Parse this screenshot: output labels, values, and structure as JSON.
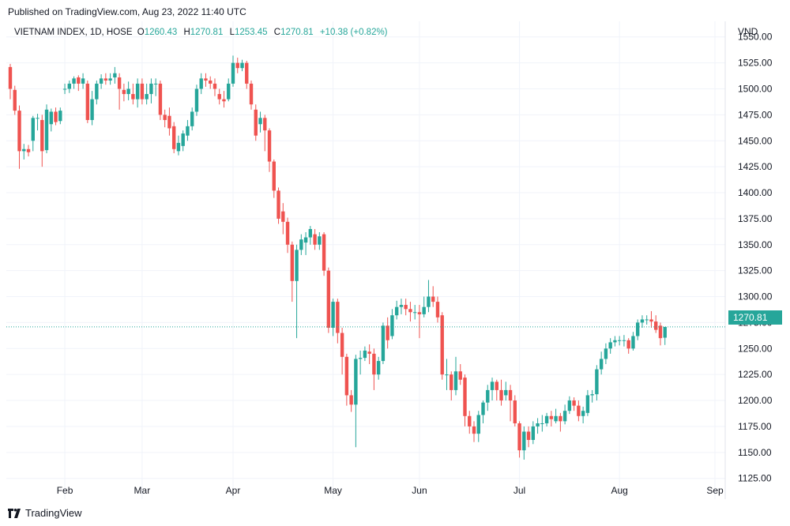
{
  "header": {
    "published": "Published on TradingView.com, Aug 23, 2022 11:40 UTC"
  },
  "legend": {
    "symbol": "VIETNAM INDEX, 1D, HOSE",
    "open_key": "O",
    "open": "1260.43",
    "high_key": "H",
    "high": "1270.81",
    "low_key": "L",
    "low": "1253.45",
    "close_key": "C",
    "close": "1270.81",
    "change": "+10.38 (+0.82%)"
  },
  "axis": {
    "unit": "VND",
    "last_price_label": "1270.81"
  },
  "footer": {
    "brand": "TradingView",
    "logo_icon": "tradingview-logo-icon"
  },
  "colors": {
    "up": "#26a69a",
    "down": "#ef5350",
    "grid": "#f0f3fa",
    "last_price_line": "#26a69a"
  },
  "chart_data": {
    "type": "candlestick",
    "title": "VIETNAM INDEX, 1D, HOSE",
    "ylim": [
      1105,
      1565
    ],
    "y_ticks": [
      1125,
      1150,
      1175,
      1200,
      1225,
      1250,
      1275,
      1300,
      1325,
      1350,
      1375,
      1400,
      1425,
      1450,
      1475,
      1500,
      1525,
      1550
    ],
    "y_tick_labels": [
      "1125.00",
      "1150.00",
      "1175.00",
      "1200.00",
      "1225.00",
      "1250.00",
      "1275.00",
      "1300.00",
      "1325.00",
      "1350.00",
      "1375.00",
      "1400.00",
      "1425.00",
      "1450.00",
      "1475.00",
      "1500.00",
      "1525.00",
      "1550.00"
    ],
    "x_tick_labels": [
      "Feb",
      "Mar",
      "Apr",
      "May",
      "Jun",
      "Jul",
      "Aug",
      "Sep"
    ],
    "x_tick_bar_index": [
      12,
      29,
      49,
      71,
      90,
      112,
      134,
      155
    ],
    "grid": true,
    "last_close": 1270.81,
    "candles": [
      [
        1521,
        1500,
        1524,
        1490
      ],
      [
        1499,
        1479,
        1503,
        1475
      ],
      [
        1479,
        1440,
        1484,
        1423
      ],
      [
        1440,
        1442,
        1447,
        1432
      ],
      [
        1442,
        1439,
        1446,
        1435
      ],
      [
        1450,
        1472,
        1474,
        1440
      ],
      [
        1472,
        1472,
        1476,
        1460
      ],
      [
        1470,
        1440,
        1475,
        1425
      ],
      [
        1441,
        1480,
        1485,
        1438
      ],
      [
        1466,
        1478,
        1481,
        1459
      ],
      [
        1478,
        1468,
        1482,
        1465
      ],
      [
        1469,
        1479,
        1482,
        1466
      ],
      [
        1500,
        1500,
        1505,
        1495
      ],
      [
        1500,
        1505,
        1508,
        1496
      ],
      [
        1505,
        1510,
        1512,
        1500
      ],
      [
        1511,
        1505,
        1513,
        1498
      ],
      [
        1505,
        1510,
        1515,
        1500
      ],
      [
        1505,
        1470,
        1508,
        1467
      ],
      [
        1470,
        1490,
        1498,
        1465
      ],
      [
        1490,
        1505,
        1508,
        1485
      ],
      [
        1505,
        1510,
        1514,
        1500
      ],
      [
        1510,
        1508,
        1515,
        1504
      ],
      [
        1508,
        1510,
        1515,
        1504
      ],
      [
        1511,
        1515,
        1521,
        1505
      ],
      [
        1511,
        1500,
        1515,
        1480
      ],
      [
        1499,
        1495,
        1505,
        1488
      ],
      [
        1495,
        1500,
        1507,
        1489
      ],
      [
        1495,
        1490,
        1505,
        1485
      ],
      [
        1490,
        1505,
        1510,
        1482
      ],
      [
        1505,
        1490,
        1510,
        1485
      ],
      [
        1490,
        1495,
        1505,
        1485
      ],
      [
        1495,
        1505,
        1510,
        1486
      ],
      [
        1505,
        1505,
        1510,
        1493
      ],
      [
        1505,
        1475,
        1508,
        1470
      ],
      [
        1475,
        1470,
        1480,
        1463
      ],
      [
        1474,
        1462,
        1482,
        1455
      ],
      [
        1464,
        1442,
        1468,
        1438
      ],
      [
        1440,
        1448,
        1455,
        1436
      ],
      [
        1445,
        1457,
        1460,
        1440
      ],
      [
        1455,
        1464,
        1470,
        1450
      ],
      [
        1464,
        1478,
        1482,
        1460
      ],
      [
        1478,
        1500,
        1504,
        1474
      ],
      [
        1500,
        1510,
        1515,
        1495
      ],
      [
        1510,
        1508,
        1515,
        1502
      ],
      [
        1508,
        1505,
        1512,
        1500
      ],
      [
        1505,
        1500,
        1510,
        1493
      ],
      [
        1495,
        1490,
        1500,
        1485
      ],
      [
        1490,
        1488,
        1498,
        1482
      ],
      [
        1490,
        1505,
        1510,
        1488
      ],
      [
        1505,
        1525,
        1532,
        1502
      ],
      [
        1525,
        1520,
        1530,
        1515
      ],
      [
        1520,
        1525,
        1528,
        1517
      ],
      [
        1525,
        1505,
        1527,
        1500
      ],
      [
        1505,
        1485,
        1508,
        1480
      ],
      [
        1480,
        1455,
        1485,
        1450
      ],
      [
        1466,
        1472,
        1478,
        1458
      ],
      [
        1472,
        1460,
        1475,
        1440
      ],
      [
        1460,
        1430,
        1462,
        1420
      ],
      [
        1430,
        1402,
        1432,
        1395
      ],
      [
        1402,
        1375,
        1405,
        1370
      ],
      [
        1382,
        1372,
        1390,
        1360
      ],
      [
        1372,
        1350,
        1376,
        1342
      ],
      [
        1350,
        1315,
        1353,
        1295
      ],
      [
        1315,
        1345,
        1350,
        1260
      ],
      [
        1345,
        1355,
        1360,
        1340
      ],
      [
        1352,
        1357,
        1362,
        1340
      ],
      [
        1357,
        1365,
        1368,
        1350
      ],
      [
        1360,
        1350,
        1365,
        1345
      ],
      [
        1350,
        1358,
        1362,
        1345
      ],
      [
        1360,
        1325,
        1362,
        1320
      ],
      [
        1325,
        1270,
        1328,
        1265
      ],
      [
        1270,
        1295,
        1298,
        1262
      ],
      [
        1295,
        1265,
        1298,
        1255
      ],
      [
        1265,
        1242,
        1270,
        1225
      ],
      [
        1242,
        1205,
        1245,
        1195
      ],
      [
        1205,
        1196,
        1210,
        1189
      ],
      [
        1196,
        1240,
        1244,
        1155
      ],
      [
        1240,
        1241,
        1248,
        1225
      ],
      [
        1241,
        1248,
        1252,
        1238
      ],
      [
        1247,
        1245,
        1254,
        1235
      ],
      [
        1245,
        1225,
        1250,
        1210
      ],
      [
        1225,
        1238,
        1242,
        1220
      ],
      [
        1238,
        1272,
        1275,
        1235
      ],
      [
        1272,
        1258,
        1280,
        1250
      ],
      [
        1262,
        1282,
        1288,
        1259
      ],
      [
        1282,
        1290,
        1296,
        1278
      ],
      [
        1290,
        1292,
        1298,
        1283
      ],
      [
        1292,
        1288,
        1298,
        1282
      ],
      [
        1288,
        1285,
        1295,
        1276
      ],
      [
        1285,
        1285,
        1292,
        1278
      ],
      [
        1285,
        1283,
        1292,
        1260
      ],
      [
        1283,
        1290,
        1300,
        1280
      ],
      [
        1290,
        1300,
        1316,
        1285
      ],
      [
        1300,
        1295,
        1310,
        1290
      ],
      [
        1295,
        1280,
        1300,
        1275
      ],
      [
        1282,
        1225,
        1285,
        1220
      ],
      [
        1225,
        1225,
        1240,
        1210
      ],
      [
        1225,
        1210,
        1228,
        1200
      ],
      [
        1210,
        1228,
        1242,
        1205
      ],
      [
        1228,
        1220,
        1235,
        1215
      ],
      [
        1222,
        1185,
        1225,
        1175
      ],
      [
        1185,
        1175,
        1190,
        1168
      ],
      [
        1175,
        1168,
        1180,
        1160
      ],
      [
        1168,
        1186,
        1190,
        1160
      ],
      [
        1186,
        1198,
        1200,
        1178
      ],
      [
        1198,
        1210,
        1215,
        1190
      ],
      [
        1210,
        1218,
        1222,
        1200
      ],
      [
        1218,
        1210,
        1220,
        1200
      ],
      [
        1210,
        1200,
        1220,
        1195
      ],
      [
        1205,
        1210,
        1218,
        1200
      ],
      [
        1210,
        1200,
        1215,
        1180
      ],
      [
        1200,
        1178,
        1205,
        1175
      ],
      [
        1178,
        1152,
        1180,
        1145
      ],
      [
        1152,
        1170,
        1175,
        1143
      ],
      [
        1170,
        1162,
        1175,
        1155
      ],
      [
        1162,
        1175,
        1180,
        1158
      ],
      [
        1175,
        1178,
        1183,
        1168
      ],
      [
        1178,
        1178,
        1186,
        1170
      ],
      [
        1178,
        1185,
        1188,
        1175
      ],
      [
        1185,
        1182,
        1190,
        1175
      ],
      [
        1180,
        1185,
        1192,
        1178
      ],
      [
        1185,
        1180,
        1188,
        1170
      ],
      [
        1180,
        1190,
        1196,
        1177
      ],
      [
        1190,
        1200,
        1204,
        1187
      ],
      [
        1200,
        1195,
        1203,
        1190
      ],
      [
        1195,
        1185,
        1200,
        1180
      ],
      [
        1185,
        1190,
        1194,
        1178
      ],
      [
        1188,
        1205,
        1210,
        1185
      ],
      [
        1205,
        1206,
        1210,
        1198
      ],
      [
        1206,
        1230,
        1234,
        1200
      ],
      [
        1230,
        1240,
        1247,
        1225
      ],
      [
        1240,
        1250,
        1255,
        1235
      ],
      [
        1250,
        1256,
        1260,
        1245
      ],
      [
        1256,
        1258,
        1262,
        1252
      ],
      [
        1258,
        1258,
        1262,
        1253
      ],
      [
        1258,
        1258,
        1263,
        1252
      ],
      [
        1258,
        1250,
        1260,
        1245
      ],
      [
        1250,
        1262,
        1266,
        1248
      ],
      [
        1262,
        1275,
        1278,
        1258
      ],
      [
        1275,
        1278,
        1282,
        1270
      ],
      [
        1278,
        1278,
        1282,
        1273
      ],
      [
        1278,
        1276,
        1286,
        1270
      ],
      [
        1276,
        1268,
        1282,
        1265
      ],
      [
        1272,
        1260,
        1275,
        1253
      ],
      [
        1260.43,
        1270.81,
        1270.81,
        1253.45
      ]
    ]
  }
}
